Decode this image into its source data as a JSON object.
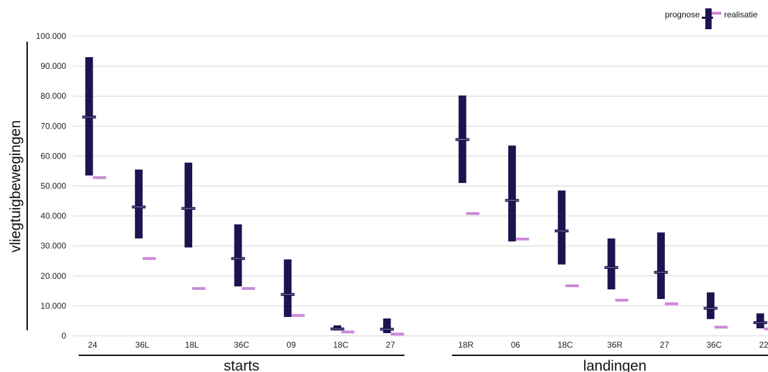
{
  "chart_data": {
    "type": "bar",
    "ylabel": "vliegtuigbewegingen",
    "ylim": [
      0,
      100000
    ],
    "yticks": [
      0,
      10000,
      20000,
      30000,
      40000,
      50000,
      60000,
      70000,
      80000,
      90000,
      100000
    ],
    "ytick_labels": [
      "0",
      "10.000",
      "20.000",
      "30.000",
      "40.000",
      "50.000",
      "60.000",
      "70.000",
      "80.000",
      "90.000",
      "100.000"
    ],
    "grid": true,
    "legend_position": "top-right",
    "legend": {
      "prognose": "prognose",
      "realisatie": "realisatie"
    },
    "colors": {
      "prognose": "#1a1450",
      "realisatie": "#cc88d8",
      "grid": "#d4d4d4",
      "axis": "#111111"
    },
    "groups": [
      {
        "name": "starts",
        "categories": [
          {
            "label": "24",
            "low": 53500,
            "high": 93000,
            "mid": 73000,
            "realisatie": 52800
          },
          {
            "label": "36L",
            "low": 32500,
            "high": 55500,
            "mid": 43000,
            "realisatie": 25800
          },
          {
            "label": "18L",
            "low": 29500,
            "high": 57800,
            "mid": 42500,
            "realisatie": 15800
          },
          {
            "label": "36C",
            "low": 16500,
            "high": 37200,
            "mid": 25800,
            "realisatie": 15800
          },
          {
            "label": "09",
            "low": 6300,
            "high": 25500,
            "mid": 13800,
            "realisatie": 6800
          },
          {
            "label": "18C",
            "low": 1800,
            "high": 3500,
            "mid": 2300,
            "realisatie": 1300
          },
          {
            "label": "27",
            "low": 900,
            "high": 5800,
            "mid": 2200,
            "realisatie": 600
          }
        ]
      },
      {
        "name": "landingen",
        "categories": [
          {
            "label": "18R",
            "low": 51000,
            "high": 80200,
            "mid": 65500,
            "realisatie": 40800
          },
          {
            "label": "06",
            "low": 31500,
            "high": 63500,
            "mid": 45200,
            "realisatie": 32300
          },
          {
            "label": "18C",
            "low": 23800,
            "high": 48500,
            "mid": 35000,
            "realisatie": 16700
          },
          {
            "label": "36R",
            "low": 15500,
            "high": 32500,
            "mid": 22800,
            "realisatie": 11900
          },
          {
            "label": "27",
            "low": 12300,
            "high": 34500,
            "mid": 21200,
            "realisatie": 10700
          },
          {
            "label": "36C",
            "low": 5600,
            "high": 14500,
            "mid": 9200,
            "realisatie": 2900
          },
          {
            "label": "22",
            "low": 2500,
            "high": 7500,
            "mid": 4400,
            "realisatie": 2300
          }
        ]
      }
    ]
  }
}
